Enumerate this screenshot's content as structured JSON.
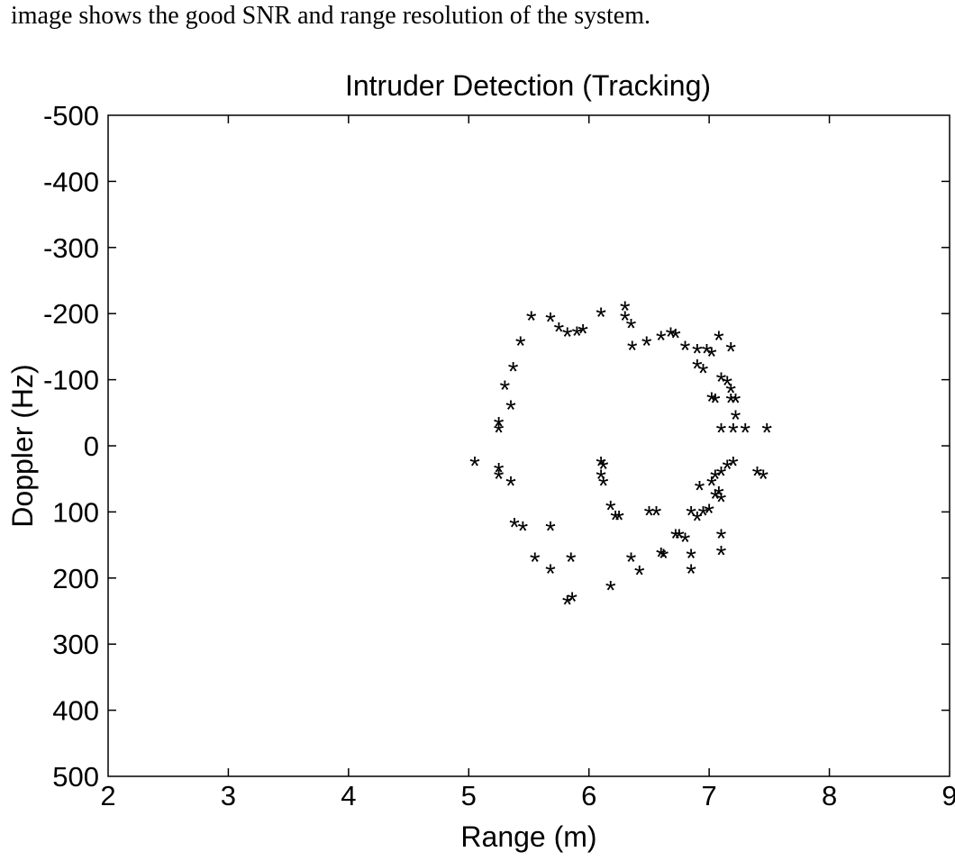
{
  "caption": "image shows the good SNR and range resolution of the system.",
  "chart_data": {
    "type": "scatter",
    "title": "Intruder Detection (Tracking)",
    "xlabel": "Range (m)",
    "ylabel": "Doppler (Hz)",
    "xlim": [
      2,
      9
    ],
    "ylim": [
      -500,
      500
    ],
    "y_reversed": true,
    "x_ticks": [
      2,
      3,
      4,
      5,
      6,
      7,
      8,
      9
    ],
    "y_ticks": [
      -500,
      -400,
      -300,
      -200,
      -100,
      0,
      100,
      200,
      300,
      400,
      500
    ],
    "grid": false,
    "marker": "*",
    "marker_color": "#000000",
    "series": [
      {
        "points": [
          [
            5.05,
            25
          ],
          [
            5.25,
            35
          ],
          [
            5.25,
            45
          ],
          [
            5.35,
            55
          ],
          [
            5.38,
            118
          ],
          [
            5.45,
            123
          ],
          [
            5.55,
            170
          ],
          [
            5.68,
            188
          ],
          [
            5.68,
            123
          ],
          [
            5.82,
            235
          ],
          [
            5.86,
            230
          ],
          [
            5.85,
            170
          ],
          [
            6.1,
            25
          ],
          [
            6.12,
            30
          ],
          [
            6.1,
            45
          ],
          [
            6.12,
            55
          ],
          [
            6.18,
            92
          ],
          [
            6.22,
            107
          ],
          [
            6.25,
            107
          ],
          [
            6.18,
            213
          ],
          [
            6.35,
            170
          ],
          [
            6.42,
            190
          ],
          [
            6.5,
            100
          ],
          [
            6.56,
            100
          ],
          [
            6.6,
            163
          ],
          [
            6.62,
            165
          ],
          [
            6.72,
            135
          ],
          [
            6.75,
            135
          ],
          [
            6.8,
            140
          ],
          [
            6.85,
            100
          ],
          [
            6.85,
            165
          ],
          [
            6.85,
            188
          ],
          [
            6.9,
            108
          ],
          [
            6.92,
            62
          ],
          [
            6.95,
            100
          ],
          [
            7.0,
            97
          ],
          [
            7.02,
            55
          ],
          [
            7.05,
            45
          ],
          [
            7.05,
            75
          ],
          [
            7.08,
            70
          ],
          [
            7.1,
            80
          ],
          [
            7.1,
            40
          ],
          [
            7.1,
            135
          ],
          [
            7.1,
            160
          ],
          [
            7.15,
            30
          ],
          [
            7.2,
            25
          ],
          [
            7.4,
            40
          ],
          [
            7.45,
            45
          ],
          [
            5.25,
            -35
          ],
          [
            5.25,
            -25
          ],
          [
            5.3,
            -90
          ],
          [
            5.35,
            -60
          ],
          [
            5.37,
            -118
          ],
          [
            5.43,
            -157
          ],
          [
            5.52,
            -195
          ],
          [
            5.68,
            -193
          ],
          [
            5.75,
            -178
          ],
          [
            5.82,
            -170
          ],
          [
            5.9,
            -172
          ],
          [
            5.95,
            -175
          ],
          [
            6.1,
            -200
          ],
          [
            6.3,
            -210
          ],
          [
            6.3,
            -195
          ],
          [
            6.35,
            -183
          ],
          [
            6.36,
            -150
          ],
          [
            6.48,
            -157
          ],
          [
            6.6,
            -165
          ],
          [
            6.68,
            -170
          ],
          [
            6.72,
            -168
          ],
          [
            6.8,
            -150
          ],
          [
            6.9,
            -145
          ],
          [
            6.9,
            -122
          ],
          [
            6.95,
            -115
          ],
          [
            6.98,
            -145
          ],
          [
            7.02,
            -140
          ],
          [
            7.02,
            -72
          ],
          [
            7.05,
            -70
          ],
          [
            7.08,
            -165
          ],
          [
            7.1,
            -102
          ],
          [
            7.1,
            -25
          ],
          [
            7.15,
            -97
          ],
          [
            7.18,
            -148
          ],
          [
            7.18,
            -85
          ],
          [
            7.18,
            -70
          ],
          [
            7.22,
            -70
          ],
          [
            7.22,
            -45
          ],
          [
            7.2,
            -25
          ],
          [
            7.3,
            -25
          ],
          [
            7.48,
            -25
          ]
        ]
      }
    ]
  }
}
